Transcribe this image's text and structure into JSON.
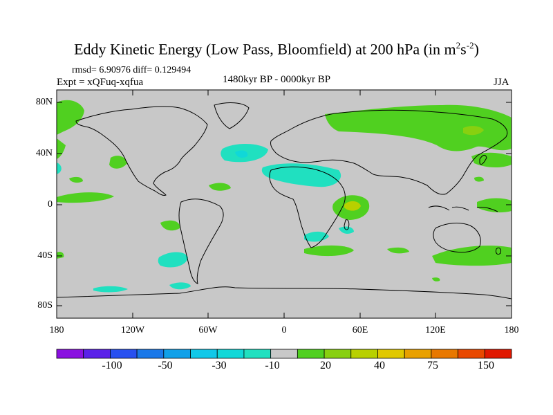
{
  "title": {
    "text": "Eddy Kinetic Energy (Low Pass, Bloomfield) at 200 hPa (in m",
    "sup1": "2",
    "mid": "s",
    "sup2": "-2",
    "end": ")"
  },
  "stats": "rmsd= 6.90976 diff= 0.129494",
  "expt": "Expt = xQFuq-xqfua",
  "period": "1480kyr BP - 0000kyr BP",
  "season": "JJA",
  "lat_labels": [
    "80N",
    "40N",
    "0",
    "40S",
    "80S"
  ],
  "lon_labels": [
    "180",
    "120W",
    "60W",
    "0",
    "60E",
    "120E",
    "180"
  ],
  "colorbar": {
    "labels": [
      "-100",
      "-50",
      "-30",
      "-10",
      "20",
      "40",
      "75",
      "150"
    ],
    "colors": [
      "#8a10e0",
      "#5a20e8",
      "#2850f0",
      "#1a78e8",
      "#10a0e8",
      "#10c8e8",
      "#10d8d8",
      "#20e0c0",
      "#c8c8c8",
      "#50d020",
      "#88d010",
      "#b8d000",
      "#e0c800",
      "#e8a000",
      "#e87800",
      "#e84800",
      "#e01800"
    ]
  },
  "map": {
    "background": "#c8c8c8",
    "lat_range": [
      -90,
      90
    ],
    "lon_range": [
      -180,
      180
    ]
  }
}
